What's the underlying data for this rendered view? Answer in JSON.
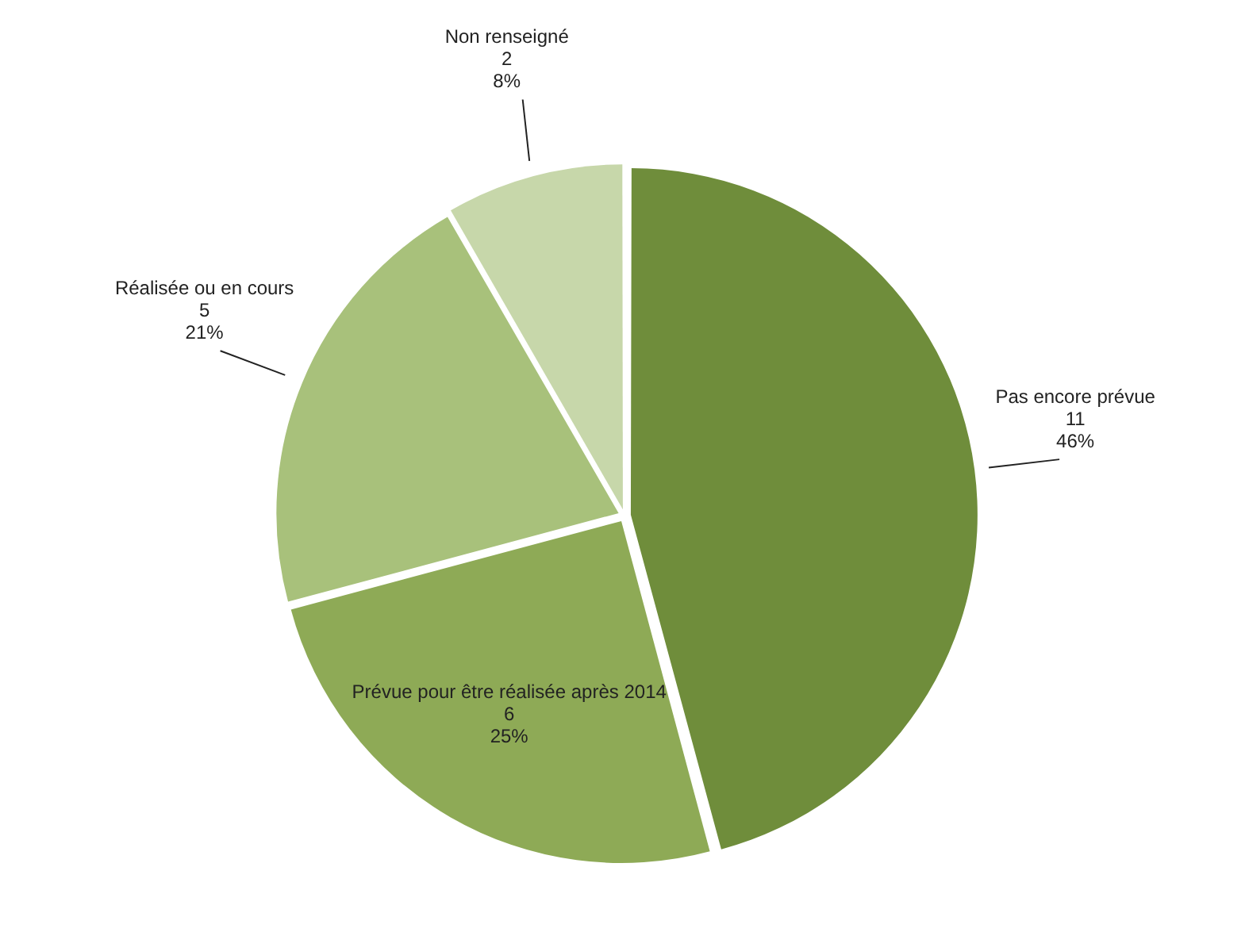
{
  "chart_data": {
    "type": "pie",
    "categories": [
      "Pas encore prévue",
      "Prévue pour être réalisée après 2014",
      "Réalisée ou en cours",
      "Non renseigné"
    ],
    "values": [
      11,
      6,
      5,
      2
    ],
    "colors": [
      "#6f8d3b",
      "#8eaa56",
      "#a8c17b",
      "#c7d7aa"
    ],
    "value_labels": [
      "11\n46%",
      "6\n25%",
      "5\n21%",
      "2\n8%"
    ],
    "legend": false
  }
}
